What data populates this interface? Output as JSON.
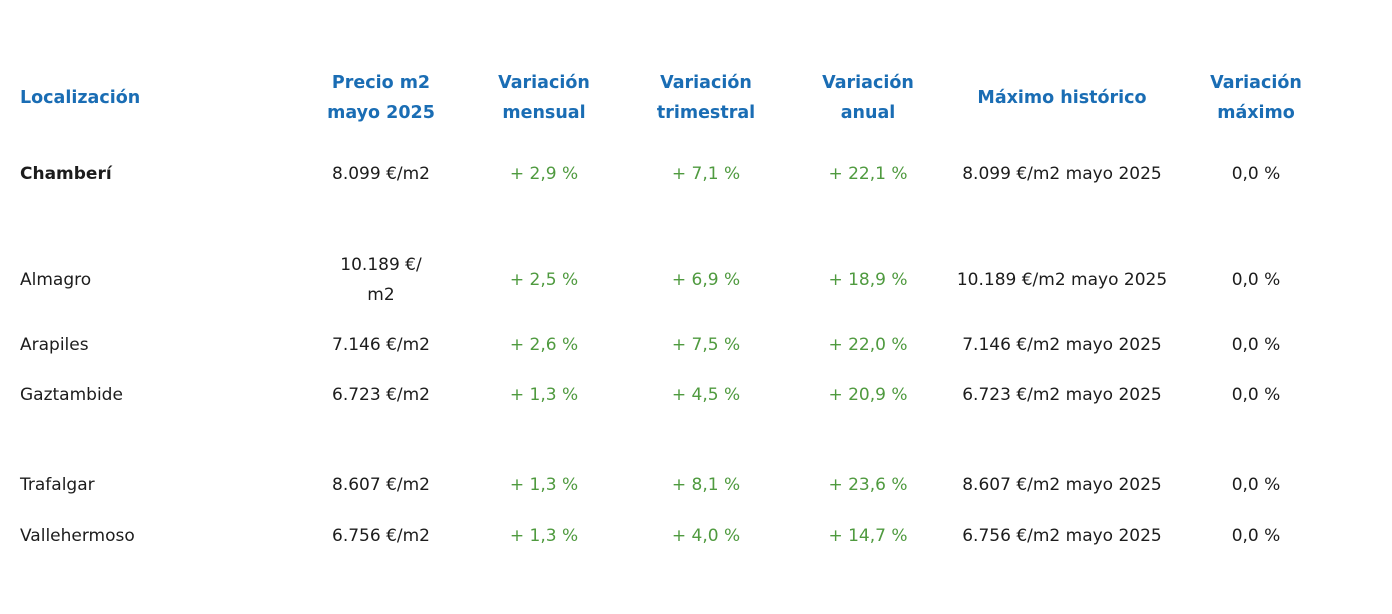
{
  "table": {
    "headers": [
      "Localización",
      "Precio m2\nmayo 2025",
      "Variación\nmensual",
      "Variación\ntrimestral",
      "Variación\nanual",
      "Máximo histórico",
      "Variación\nmáximo"
    ],
    "rows": [
      [
        "Chamberí",
        "8.099 €/m2",
        "+ 2,9 %",
        "+ 7,1 %",
        "+ 22,1 %",
        "8.099 €/m2 mayo 2025",
        "0,0 %"
      ],
      [
        "Almagro",
        "10.189 €/\nm2",
        "+ 2,5 %",
        "+ 6,9 %",
        "+ 18,9 %",
        "10.189 €/m2 mayo 2025",
        "0,0 %"
      ],
      [
        "Arapiles",
        "7.146 €/m2",
        "+ 2,6 %",
        "+ 7,5 %",
        "+ 22,0 %",
        "7.146 €/m2 mayo 2025",
        "0,0 %"
      ],
      [
        "Gaztambide",
        "6.723 €/m2",
        "+ 1,3 %",
        "+ 4,5 %",
        "+ 20,9 %",
        "6.723 €/m2 mayo 2025",
        "0,0 %"
      ],
      [
        "Trafalgar",
        "8.607 €/m2",
        "+ 1,3 %",
        "+ 8,1 %",
        "+ 23,6 %",
        "8.607 €/m2 mayo 2025",
        "0,0 %"
      ],
      [
        "Vallehermoso",
        "6.756 €/m2",
        "+ 1,3 %",
        "+ 4,0 %",
        "+ 14,7 %",
        "6.756 €/m2 mayo 2025",
        "0,0 %"
      ]
    ]
  }
}
